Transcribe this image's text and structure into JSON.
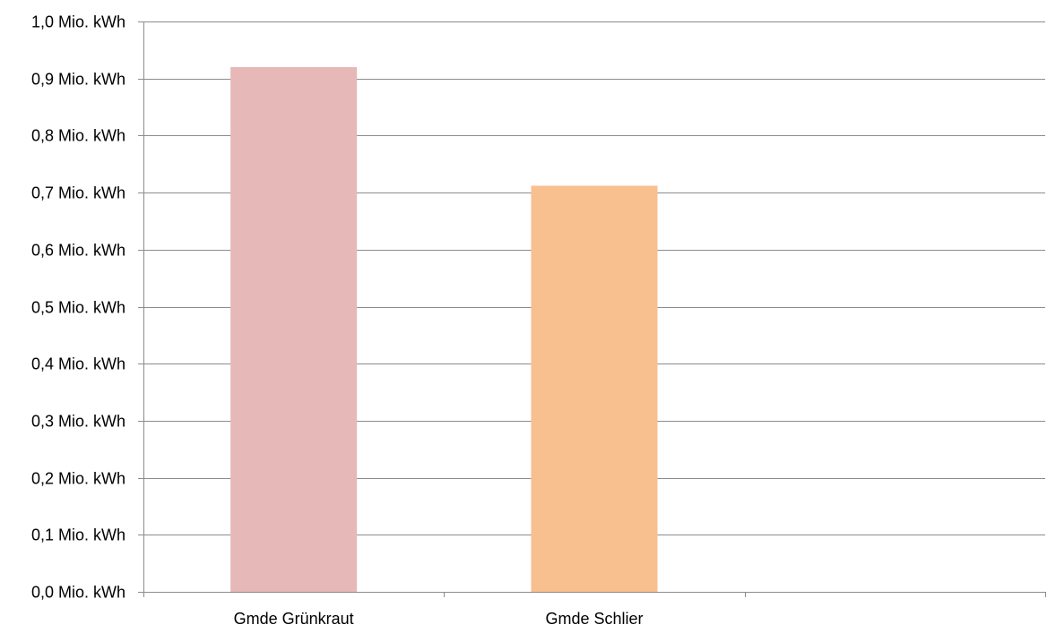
{
  "chart_data": {
    "type": "bar",
    "categories": [
      "Gmde Grünkraut",
      "Gmde Schlier",
      ""
    ],
    "values": [
      0.92,
      0.712,
      null
    ],
    "bar_colors": [
      "#e6b8b7",
      "#f8bf8f"
    ],
    "ylim": [
      0,
      1.0
    ],
    "y_step": 0.1,
    "y_tick_labels": [
      "0,0 Mio. kWh",
      "0,1 Mio. kWh",
      "0,2 Mio. kWh",
      "0,3 Mio. kWh",
      "0,4 Mio. kWh",
      "0,5 Mio. kWh",
      "0,6 Mio. kWh",
      "0,7 Mio. kWh",
      "0,8 Mio. kWh",
      "0,9 Mio. kWh",
      "1,0 Mio. kWh"
    ],
    "grid": true,
    "legend": false,
    "title": "",
    "xlabel": "",
    "ylabel": ""
  },
  "colors": {
    "grid": "#8c8c8c",
    "axis": "#8c8c8c",
    "text": "#000000"
  }
}
